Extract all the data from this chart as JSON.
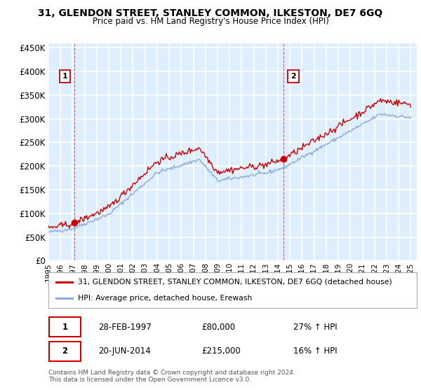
{
  "title": "31, GLENDON STREET, STANLEY COMMON, ILKESTON, DE7 6GQ",
  "subtitle": "Price paid vs. HM Land Registry's House Price Index (HPI)",
  "red_label": "31, GLENDON STREET, STANLEY COMMON, ILKESTON, DE7 6GQ (detached house)",
  "blue_label": "HPI: Average price, detached house, Erewash",
  "annotation1_date": "28-FEB-1997",
  "annotation1_price": "£80,000",
  "annotation1_hpi": "27% ↑ HPI",
  "annotation2_date": "20-JUN-2014",
  "annotation2_price": "£215,000",
  "annotation2_hpi": "16% ↑ HPI",
  "footnote": "Contains HM Land Registry data © Crown copyright and database right 2024.\nThis data is licensed under the Open Government Licence v3.0.",
  "red_color": "#cc0000",
  "blue_color": "#88aadd",
  "plot_bg_color": "#ddeeff",
  "grid_color": "#ffffff",
  "ylim": [
    0,
    460000
  ],
  "yticks": [
    0,
    50000,
    100000,
    150000,
    200000,
    250000,
    300000,
    350000,
    400000,
    450000
  ],
  "xlim_start": 1995.0,
  "xlim_end": 2025.5,
  "sale1_x": 1997.16,
  "sale1_y": 80000,
  "sale2_x": 2014.47,
  "sale2_y": 215000
}
